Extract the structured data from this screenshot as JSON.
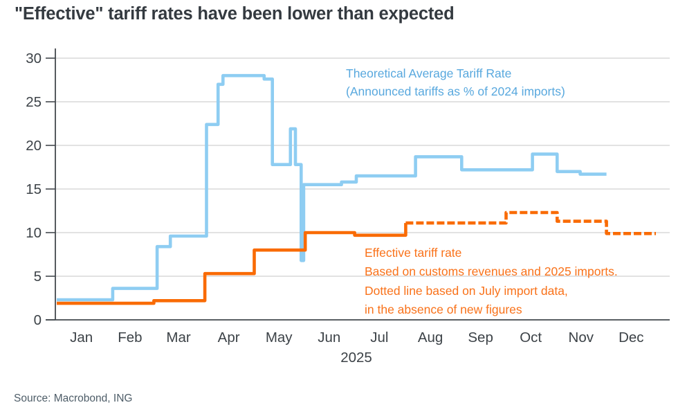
{
  "title": "\"Effective\" tariff rates have been lower than expected",
  "source": "Source: Macrobond, ING",
  "colors": {
    "title_text": "#343a40",
    "axis_line": "#43484d",
    "tick_text": "#3c4247",
    "gridline": "#d8d8d8",
    "blue_line": "#8ecdf2",
    "blue_legend_text": "#58a8de",
    "orange_line": "#f96b05",
    "orange_legend_text": "#f9721a",
    "source_text": "#4e5d68"
  },
  "legends": {
    "theoretical": {
      "lines": [
        "Theoretical Average Tariff Rate",
        "(Announced tariffs as % of 2024 imports)"
      ]
    },
    "effective": {
      "lines": [
        "Effective tariff rate",
        "Based on customs revenues and 2025 imports.",
        "Dotted line based on July import data,",
        "in the absence of new figures"
      ]
    }
  },
  "chart_data": {
    "type": "line",
    "title": "\"Effective\" tariff rates have been lower than expected",
    "x_axis": {
      "year_label": "2025",
      "month_labels": [
        "Jan",
        "Feb",
        "Mar",
        "Apr",
        "May",
        "Jun",
        "Jul",
        "Aug",
        "Sep",
        "Oct",
        "Nov",
        "Dec"
      ],
      "month_lengths_days": [
        31,
        28,
        31,
        30,
        31,
        30,
        31,
        31,
        30,
        31,
        30,
        31
      ],
      "range_days": [
        1,
        365
      ]
    },
    "y_axis": {
      "ticks": [
        0,
        5,
        10,
        15,
        20,
        25,
        30
      ],
      "min": 0,
      "max": 30,
      "grid": "horizontal"
    },
    "legend_position": "inside-plot",
    "series": [
      {
        "name": "Theoretical Average Tariff Rate (Announced tariffs as % of 2024 imports)",
        "color": "#8ecdf2",
        "line_style": "solid",
        "step_points_day_value": [
          [
            1,
            2.3
          ],
          [
            35,
            3.6
          ],
          [
            62,
            8.4
          ],
          [
            70,
            9.6
          ],
          [
            92,
            22.4
          ],
          [
            99,
            27.0
          ],
          [
            102,
            28.0
          ],
          [
            127,
            27.6
          ],
          [
            132,
            17.8
          ],
          [
            143,
            21.9
          ],
          [
            146,
            17.8
          ],
          [
            149.5,
            6.8
          ],
          [
            151,
            15.5
          ],
          [
            174,
            15.8
          ],
          [
            183,
            16.5
          ],
          [
            219,
            18.7
          ],
          [
            247,
            17.2
          ],
          [
            290,
            19.0
          ],
          [
            305,
            17.0
          ],
          [
            319,
            16.7
          ]
        ],
        "end_day": 335
      },
      {
        "name": "Effective tariff rate (based on customs revenues and 2025 imports)",
        "color": "#f96b05",
        "line_style": "solid",
        "step_points_day_value": [
          [
            1,
            1.9
          ],
          [
            60,
            2.2
          ],
          [
            91,
            5.3
          ],
          [
            121,
            8.0
          ],
          [
            152,
            10.0
          ],
          [
            182,
            9.7
          ],
          [
            213,
            11.1
          ]
        ],
        "end_day": 213
      },
      {
        "name": "Effective tariff rate projection (dotted, based on July import data)",
        "color": "#f96b05",
        "line_style": "dashed",
        "step_points_day_value": [
          [
            213,
            11.1
          ],
          [
            274,
            12.3
          ],
          [
            305,
            11.3
          ],
          [
            335,
            9.9
          ]
        ],
        "end_day": 365
      }
    ]
  }
}
